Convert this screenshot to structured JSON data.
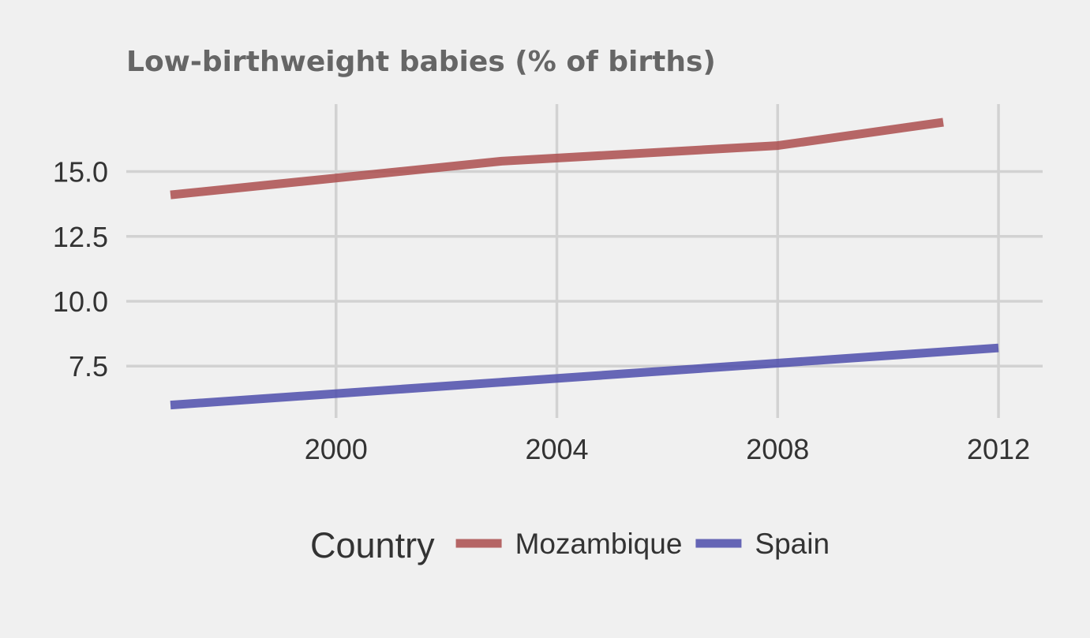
{
  "chart_data": {
    "type": "line",
    "title": "Low-birthweight babies (% of births)",
    "xlabel": "",
    "ylabel": "",
    "x_ticks": [
      2000,
      2004,
      2008,
      2012
    ],
    "y_ticks": [
      7.5,
      10.0,
      12.5,
      15.0
    ],
    "y_tick_labels": [
      "7.5",
      "10.0",
      "12.5",
      "15.0"
    ],
    "xlim": [
      1996.2,
      2012.8
    ],
    "ylim": [
      5.5,
      17.6
    ],
    "grid": true,
    "legend": {
      "title": "Country",
      "position": "bottom"
    },
    "series": [
      {
        "name": "Mozambique",
        "color": "#ab4d4d",
        "x": [
          1997,
          2003,
          2008,
          2011
        ],
        "y": [
          14.1,
          15.4,
          16.0,
          16.9
        ]
      },
      {
        "name": "Spain",
        "color": "#4d4dab",
        "x": [
          1997,
          2012
        ],
        "y": [
          6.0,
          8.2
        ]
      }
    ]
  }
}
